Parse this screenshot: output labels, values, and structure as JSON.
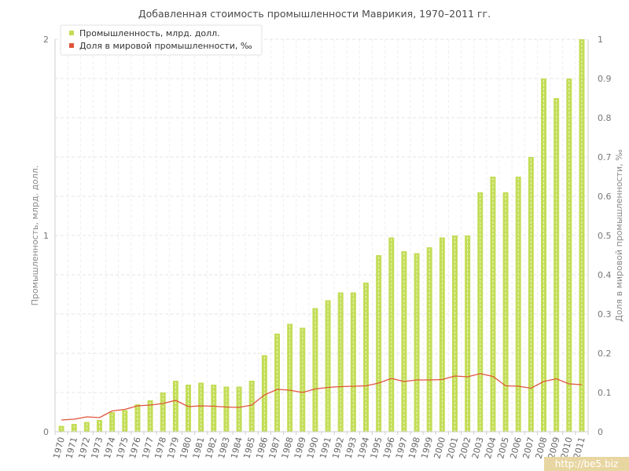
{
  "chart_data": {
    "type": "bar",
    "title": "Добавленная стоимость промышленности Маврикия, 1970–2011 гг.",
    "ylabel": "Промышленность, млрд. долл.",
    "y2label": "Доля в мировой промышленности, ‰",
    "ylim": [
      0,
      2
    ],
    "y2lim": [
      0,
      1
    ],
    "yticks": [
      "0",
      "1",
      "2"
    ],
    "y2ticks": [
      "0",
      "0.1",
      "0.2",
      "0.3",
      "0.4",
      "0.5",
      "0.6",
      "0.7",
      "0.8",
      "0.9",
      "1"
    ],
    "grid": true,
    "legend_position": "top-left",
    "categories": [
      "1970",
      "1971",
      "1972",
      "1973",
      "1974",
      "1975",
      "1976",
      "1977",
      "1978",
      "1979",
      "1980",
      "1981",
      "1982",
      "1983",
      "1984",
      "1985",
      "1986",
      "1987",
      "1988",
      "1989",
      "1990",
      "1991",
      "1992",
      "1993",
      "1994",
      "1995",
      "1996",
      "1997",
      "1998",
      "1999",
      "2000",
      "2001",
      "2002",
      "2003",
      "2004",
      "2005",
      "2006",
      "2007",
      "2008",
      "2009",
      "2010",
      "2011"
    ],
    "series": [
      {
        "name": "Промышленность, млрд. долл.",
        "kind": "bar",
        "axis": "left",
        "color": "#c3dd57",
        "values": [
          0.03,
          0.04,
          0.05,
          0.06,
          0.1,
          0.11,
          0.14,
          0.16,
          0.2,
          0.26,
          0.24,
          0.25,
          0.24,
          0.23,
          0.23,
          0.26,
          0.39,
          0.5,
          0.55,
          0.53,
          0.63,
          0.67,
          0.71,
          0.71,
          0.76,
          0.9,
          0.99,
          0.92,
          0.91,
          0.94,
          0.99,
          1.0,
          1.0,
          1.22,
          1.3,
          1.22,
          1.3,
          1.4,
          1.8,
          1.7,
          1.8,
          2.0
        ]
      },
      {
        "name": "Доля в мировой промышленности, ‰",
        "kind": "line",
        "axis": "right",
        "color": "#e0553a",
        "values": [
          0.03,
          0.032,
          0.038,
          0.036,
          0.053,
          0.057,
          0.066,
          0.068,
          0.072,
          0.08,
          0.064,
          0.066,
          0.065,
          0.063,
          0.062,
          0.068,
          0.094,
          0.108,
          0.106,
          0.1,
          0.109,
          0.113,
          0.115,
          0.116,
          0.117,
          0.124,
          0.136,
          0.128,
          0.132,
          0.132,
          0.133,
          0.142,
          0.14,
          0.148,
          0.141,
          0.117,
          0.116,
          0.111,
          0.128,
          0.135,
          0.122,
          0.12
        ]
      }
    ]
  },
  "watermark": "http://be5.biz"
}
